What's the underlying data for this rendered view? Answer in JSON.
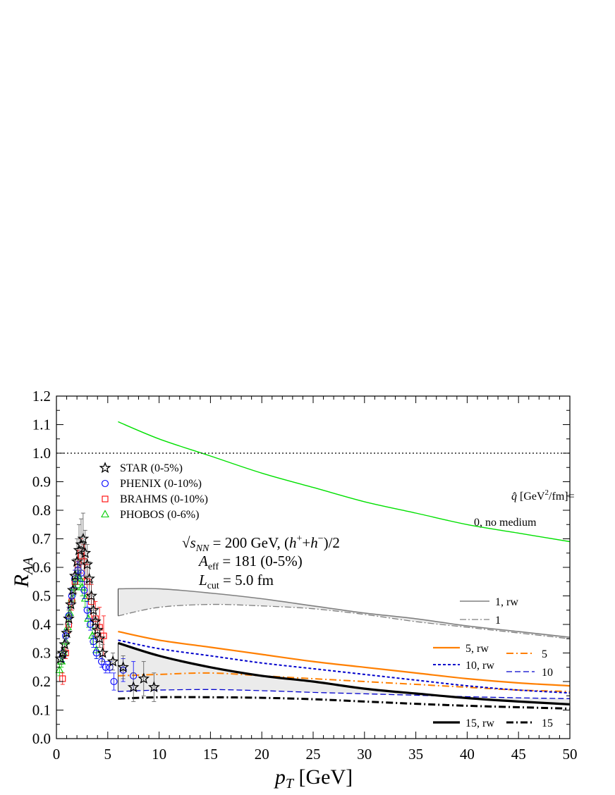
{
  "chart_data": {
    "type": "line",
    "xlabel": "p_T [GeV]",
    "ylabel": "R_AA",
    "xlim": [
      0,
      50
    ],
    "ylim": [
      0,
      1.2
    ],
    "x_ticks": [
      "0",
      "5",
      "10",
      "15",
      "20",
      "25",
      "30",
      "35",
      "40",
      "45",
      "50"
    ],
    "y_ticks": [
      "0.0",
      "0.1",
      "0.2",
      "0.3",
      "0.4",
      "0.5",
      "0.6",
      "0.7",
      "0.8",
      "0.9",
      "1.0",
      "1.1",
      "1.2"
    ],
    "grid": false,
    "reference_line": {
      "y": 1.0,
      "style": "dotted"
    },
    "annotations": {
      "energy": "√s_NN = 200 GeV, (h⁺+h⁻)/2",
      "aeff": "A_eff = 181 (0-5%)",
      "lcut": "L_cut = 5.0 fm",
      "qhat_header": "q̂ [GeV²/fm]=",
      "no_medium": "0, no medium"
    },
    "data_series": [
      {
        "name": "STAR (0-5%)",
        "marker": "star",
        "color": "#000000",
        "x": [
          0.4,
          0.6,
          0.8,
          1.0,
          1.2,
          1.4,
          1.6,
          1.8,
          2.0,
          2.2,
          2.4,
          2.6,
          2.8,
          3.0,
          3.2,
          3.4,
          3.6,
          3.8,
          4.0,
          4.2,
          4.5,
          5.5,
          6.5,
          7.5,
          8.5,
          9.5
        ],
        "y": [
          0.28,
          0.3,
          0.33,
          0.37,
          0.42,
          0.47,
          0.52,
          0.57,
          0.62,
          0.66,
          0.68,
          0.7,
          0.65,
          0.61,
          0.56,
          0.5,
          0.45,
          0.41,
          0.38,
          0.35,
          0.3,
          0.27,
          0.25,
          0.18,
          0.21,
          0.18
        ],
        "err": [
          0.02,
          0.02,
          0.02,
          0.03,
          0.03,
          0.04,
          0.05,
          0.06,
          0.08,
          0.09,
          0.09,
          0.09,
          0.08,
          0.07,
          0.06,
          0.05,
          0.05,
          0.04,
          0.04,
          0.03,
          0.03,
          0.03,
          0.04,
          0.05,
          0.06,
          0.05
        ]
      },
      {
        "name": "PHENIX (0-10%)",
        "marker": "circle",
        "color": "#0000ff",
        "x": [
          0.6,
          0.9,
          1.2,
          1.5,
          1.8,
          2.1,
          2.4,
          2.7,
          3.0,
          3.3,
          3.6,
          3.9,
          4.4,
          4.8,
          5.2,
          5.6,
          6.5,
          7.5
        ],
        "y": [
          0.29,
          0.36,
          0.43,
          0.5,
          0.56,
          0.59,
          0.58,
          0.52,
          0.45,
          0.4,
          0.34,
          0.3,
          0.27,
          0.25,
          0.25,
          0.2,
          0.24,
          0.22
        ],
        "err": [
          0.02,
          0.02,
          0.03,
          0.03,
          0.03,
          0.03,
          0.03,
          0.03,
          0.03,
          0.02,
          0.02,
          0.02,
          0.02,
          0.02,
          0.02,
          0.03,
          0.04,
          0.05
        ]
      },
      {
        "name": "BRAHMS (0-10%)",
        "marker": "square",
        "color": "#ff0000",
        "x": [
          0.6,
          0.9,
          1.2,
          1.5,
          1.8,
          2.1,
          2.4,
          2.7,
          3.0,
          3.4,
          3.8,
          4.2,
          4.6
        ],
        "y": [
          0.21,
          0.3,
          0.4,
          0.48,
          0.55,
          0.61,
          0.64,
          0.62,
          0.55,
          0.48,
          0.42,
          0.39,
          0.36
        ],
        "err": [
          0.02,
          0.02,
          0.03,
          0.03,
          0.04,
          0.05,
          0.06,
          0.06,
          0.06,
          0.06,
          0.06,
          0.07,
          0.07
        ]
      },
      {
        "name": "PHOBOS (0-6%)",
        "marker": "triangle",
        "color": "#00cc00",
        "x": [
          0.3,
          0.5,
          0.7,
          0.9,
          1.1,
          1.3,
          1.5,
          1.7,
          1.9,
          2.1,
          2.3,
          2.5,
          2.8,
          3.1,
          3.5,
          3.9
        ],
        "y": [
          0.24,
          0.27,
          0.3,
          0.34,
          0.39,
          0.44,
          0.49,
          0.53,
          0.56,
          0.57,
          0.56,
          0.53,
          0.49,
          0.42,
          0.36,
          0.31
        ],
        "err": [
          0.02,
          0.02,
          0.02,
          0.02,
          0.03,
          0.03,
          0.03,
          0.03,
          0.03,
          0.03,
          0.03,
          0.03,
          0.03,
          0.03,
          0.03,
          0.03
        ]
      }
    ],
    "model_x": [
      6,
      10,
      15,
      20,
      25,
      30,
      35,
      40,
      45,
      50
    ],
    "model_series": [
      {
        "name": "0, no medium",
        "color": "#00e000",
        "width": 1.4,
        "dash": "none",
        "y": [
          1.11,
          1.05,
          0.99,
          0.93,
          0.88,
          0.83,
          0.79,
          0.75,
          0.72,
          0.69
        ]
      },
      {
        "name": "1, rw",
        "color": "#808080",
        "width": 1.6,
        "dash": "none",
        "y": [
          0.525,
          0.525,
          0.51,
          0.49,
          0.465,
          0.44,
          0.42,
          0.395,
          0.375,
          0.355
        ]
      },
      {
        "name": "1",
        "color": "#808080",
        "width": 1.3,
        "dash": "9,3,2,3",
        "y": [
          0.43,
          0.46,
          0.47,
          0.465,
          0.455,
          0.435,
          0.41,
          0.39,
          0.37,
          0.35
        ]
      },
      {
        "name": "5, rw",
        "color": "#ff7f00",
        "width": 2.2,
        "dash": "none",
        "y": [
          0.375,
          0.345,
          0.32,
          0.295,
          0.27,
          0.25,
          0.23,
          0.21,
          0.195,
          0.185
        ]
      },
      {
        "name": "5",
        "color": "#ff7f00",
        "width": 2.0,
        "dash": "10,4,2,4",
        "y": [
          0.22,
          0.225,
          0.23,
          0.22,
          0.21,
          0.2,
          0.19,
          0.18,
          0.17,
          0.165
        ]
      },
      {
        "name": "10, rw",
        "color": "#0000cc",
        "width": 2.0,
        "dash": "4,3",
        "y": [
          0.345,
          0.315,
          0.29,
          0.265,
          0.245,
          0.225,
          0.205,
          0.185,
          0.17,
          0.16
        ]
      },
      {
        "name": "10",
        "color": "#0000cc",
        "width": 1.3,
        "dash": "8,4",
        "y": [
          0.165,
          0.17,
          0.172,
          0.168,
          0.162,
          0.157,
          0.152,
          0.147,
          0.143,
          0.14
        ]
      },
      {
        "name": "15, rw",
        "color": "#000000",
        "width": 3.2,
        "dash": "none",
        "y": [
          0.335,
          0.29,
          0.25,
          0.22,
          0.2,
          0.175,
          0.158,
          0.142,
          0.13,
          0.12
        ]
      },
      {
        "name": "15",
        "color": "#000000",
        "width": 3.0,
        "dash": "10,4,2,4",
        "y": [
          0.14,
          0.145,
          0.145,
          0.143,
          0.138,
          0.13,
          0.122,
          0.115,
          0.11,
          0.105
        ]
      }
    ],
    "bands": [
      {
        "upper": "1, rw",
        "lower": "1",
        "fill": "#ebebeb"
      },
      {
        "upper": "15, rw",
        "lower": "10",
        "fill": "#ebebeb"
      }
    ],
    "legend_data": [
      {
        "label": "STAR (0-5%)",
        "marker": "star"
      },
      {
        "label": "PHENIX (0-10%)",
        "marker": "circle"
      },
      {
        "label": "BRAHMS (0-10%)",
        "marker": "square"
      },
      {
        "label": "PHOBOS (0-6%)",
        "marker": "triangle"
      }
    ],
    "legend_placement": "upper-left"
  }
}
